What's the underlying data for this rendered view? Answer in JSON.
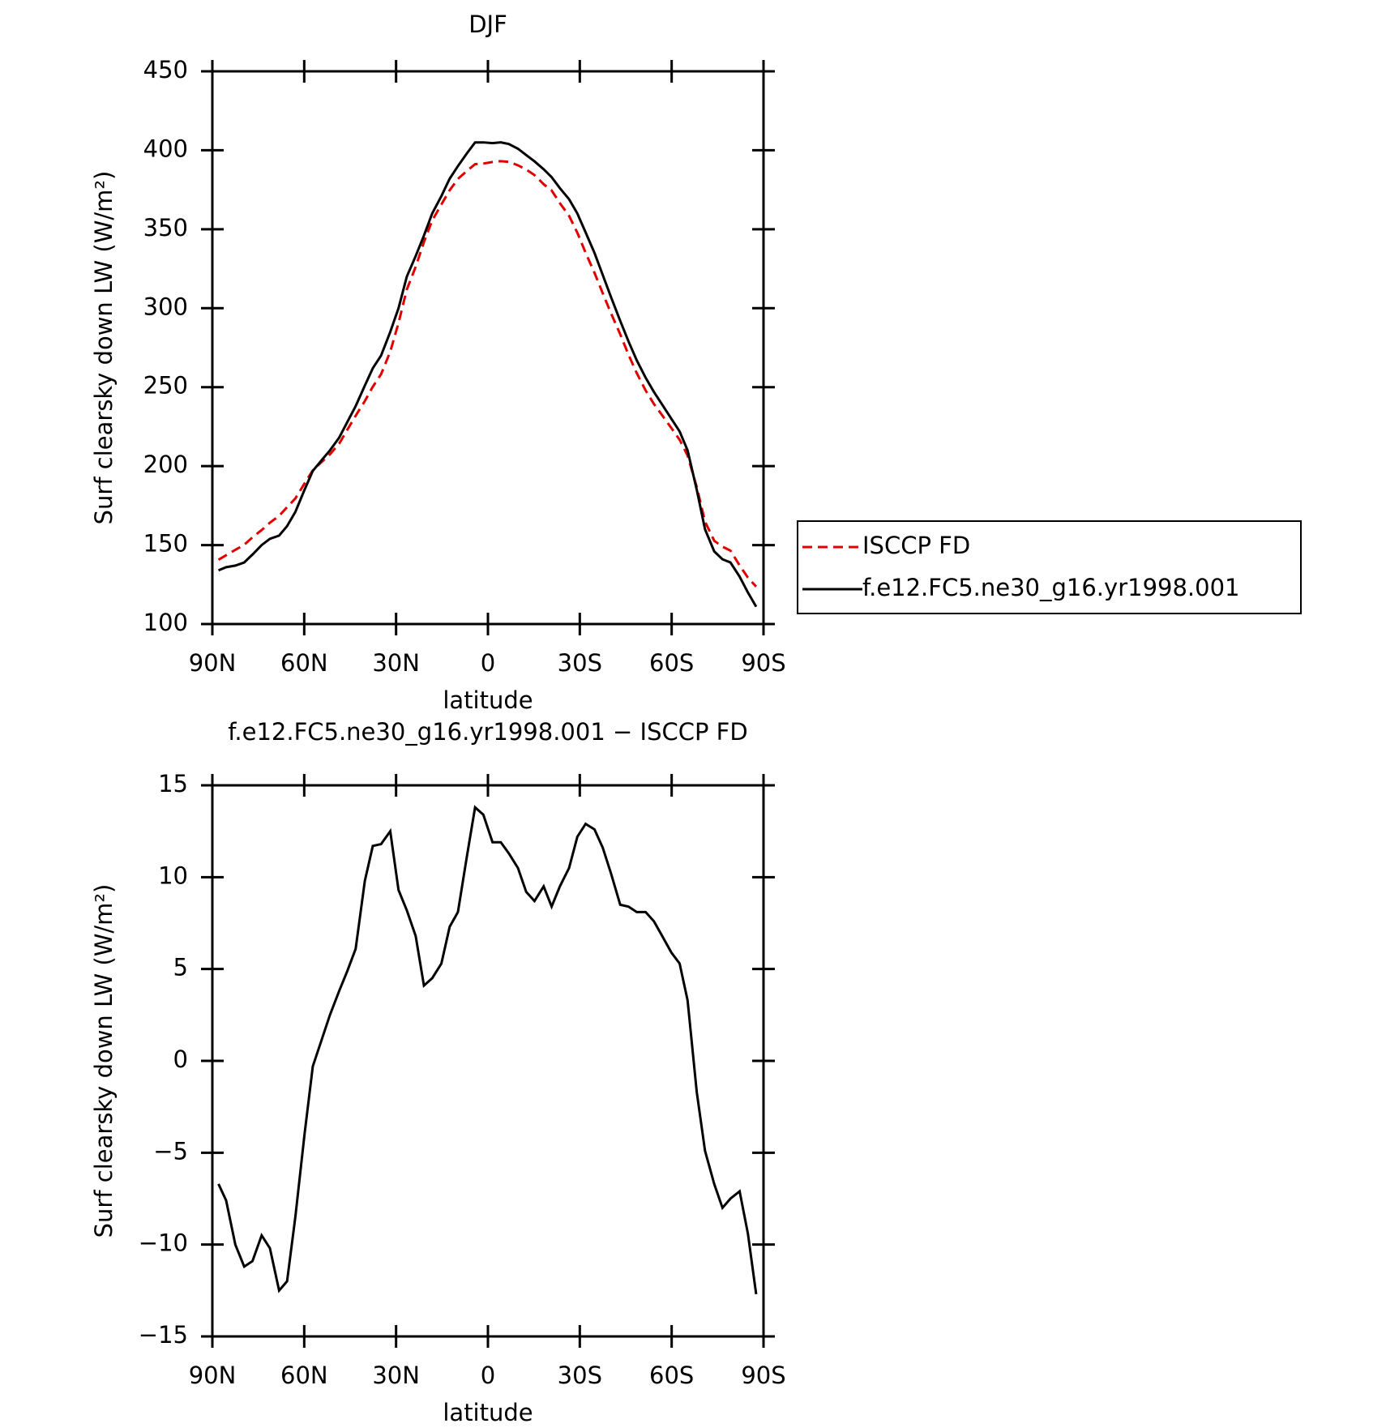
{
  "chart_data": [
    {
      "type": "line",
      "title": "DJF",
      "xlabel": "latitude",
      "ylabel": "Surf clearsky down LW (W/m²)",
      "x": [
        88,
        85.5,
        82.5,
        79.6,
        76.9,
        73.9,
        71.2,
        68.2,
        65.6,
        62.9,
        59.9,
        57.2,
        54.2,
        51.6,
        48.6,
        45.9,
        43.2,
        40.2,
        37.6,
        34.9,
        31.9,
        29.2,
        26.5,
        23.6,
        20.9,
        18.2,
        15.2,
        12.5,
        9.8,
        6.9,
        4.2,
        1.5,
        -1.5,
        -4.2,
        -6.8,
        -9.8,
        -12.5,
        -15.2,
        -18.2,
        -20.8,
        -23.5,
        -26.5,
        -29.2,
        -31.9,
        -34.8,
        -37.5,
        -40.2,
        -43.2,
        -45.9,
        -48.6,
        -51.5,
        -54.2,
        -56.9,
        -59.9,
        -62.6,
        -65.2,
        -68.2,
        -70.9,
        -73.9,
        -76.6,
        -79.2,
        -82.2,
        -84.9,
        -87.6
      ],
      "series": [
        {
          "name": "ISCCP FD",
          "color": "#e00000",
          "dash": true,
          "values": [
            140.7,
            143.6,
            147,
            150.2,
            154.9,
            159.5,
            164.2,
            168.5,
            174,
            179.5,
            189,
            197.3,
            202.8,
            207.5,
            214.2,
            223.1,
            231.9,
            241.2,
            250.3,
            258.2,
            272.5,
            290.7,
            311.8,
            326.2,
            341.9,
            355.5,
            365.7,
            374.7,
            381.9,
            386.9,
            391.2,
            391.6,
            392.6,
            393.1,
            392.7,
            390.5,
            387.8,
            384.3,
            378.5,
            374.6,
            366.5,
            358.5,
            347.8,
            335.1,
            322.4,
            309.4,
            296.8,
            283.5,
            270.6,
            258.9,
            247.9,
            239.4,
            232.2,
            224.1,
            216.7,
            206.7,
            186.7,
            164.9,
            152.7,
            149,
            146.5,
            137.1,
            129.4,
            123.7
          ]
        },
        {
          "name": "f.e12.FC5.ne30_g16.yr1998.001",
          "color": "#000000",
          "dash": false,
          "values": [
            134,
            136,
            137,
            139,
            144,
            150,
            154,
            156,
            162,
            171,
            185,
            197,
            204,
            210,
            218,
            228,
            238,
            251,
            262,
            270,
            285,
            300,
            320,
            333,
            346,
            360,
            371,
            382,
            390,
            398,
            405,
            405,
            404.5,
            405,
            404,
            401,
            397,
            393,
            388,
            383,
            376,
            369,
            360,
            348,
            335,
            321,
            307,
            292,
            279,
            267,
            256,
            247,
            239,
            230,
            222,
            210,
            185,
            160,
            146,
            141,
            139,
            130,
            120,
            111
          ]
        }
      ],
      "xlim": [
        90,
        -90
      ],
      "xticks": [
        {
          "value": 90,
          "label": "90N"
        },
        {
          "value": 60,
          "label": "60N"
        },
        {
          "value": 30,
          "label": "30N"
        },
        0,
        {
          "value": -30,
          "label": "30S"
        },
        {
          "value": -60,
          "label": "60S"
        },
        {
          "value": -90,
          "label": "90S"
        }
      ],
      "ylim": [
        100,
        450
      ],
      "yticks": [
        100,
        150,
        200,
        250,
        300,
        350,
        400,
        450
      ],
      "legend": "right"
    },
    {
      "type": "line",
      "title": "f.e12.FC5.ne30_g16.yr1998.001 − ISCCP FD",
      "xlabel": "latitude",
      "ylabel": "Surf clearsky down LW (W/m²)",
      "x": [
        88,
        85.5,
        82.5,
        79.6,
        76.9,
        73.9,
        71.2,
        68.2,
        65.6,
        62.9,
        59.9,
        57.2,
        54.2,
        51.6,
        48.6,
        45.9,
        43.2,
        40.2,
        37.6,
        34.9,
        31.9,
        29.2,
        26.5,
        23.6,
        20.9,
        18.2,
        15.2,
        12.5,
        9.8,
        6.9,
        4.2,
        1.5,
        -1.5,
        -4.2,
        -6.8,
        -9.8,
        -12.5,
        -15.2,
        -18.2,
        -20.8,
        -23.5,
        -26.5,
        -29.2,
        -31.9,
        -34.8,
        -37.5,
        -40.2,
        -43.2,
        -45.9,
        -48.6,
        -51.5,
        -54.2,
        -56.9,
        -59.9,
        -62.6,
        -65.2,
        -68.2,
        -70.9,
        -73.9,
        -76.6,
        -79.2,
        -82.2,
        -84.9,
        -87.6
      ],
      "series": [
        {
          "color": "#000000",
          "dash": false,
          "values": [
            -6.7,
            -7.6,
            -10,
            -11.2,
            -10.9,
            -9.5,
            -10.2,
            -12.5,
            -12,
            -8.5,
            -4,
            -0.3,
            1.2,
            2.5,
            3.8,
            4.9,
            6.1,
            9.8,
            11.7,
            11.8,
            12.5,
            9.3,
            8.2,
            6.8,
            4.1,
            4.5,
            5.3,
            7.3,
            8.1,
            11.1,
            13.8,
            13.4,
            11.9,
            11.9,
            11.3,
            10.5,
            9.2,
            8.7,
            9.5,
            8.4,
            9.5,
            10.5,
            12.2,
            12.9,
            12.6,
            11.6,
            10.2,
            8.5,
            8.4,
            8.1,
            8.1,
            7.6,
            6.8,
            5.9,
            5.3,
            3.3,
            -1.7,
            -4.9,
            -6.7,
            -8,
            -7.5,
            -7.1,
            -9.4,
            -12.7
          ]
        }
      ],
      "xlim": [
        90,
        -90
      ],
      "xticks": [
        {
          "value": 90,
          "label": "90N"
        },
        {
          "value": 60,
          "label": "60N"
        },
        {
          "value": 30,
          "label": "30N"
        },
        0,
        {
          "value": -30,
          "label": "30S"
        },
        {
          "value": -60,
          "label": "60S"
        },
        {
          "value": -90,
          "label": "90S"
        }
      ],
      "ylim": [
        -15,
        15
      ],
      "yticks": [
        {
          "value": -15,
          "label": "−15"
        },
        {
          "value": -10,
          "label": "−10"
        },
        {
          "value": -5,
          "label": "−5"
        },
        0,
        5,
        10,
        15
      ]
    }
  ]
}
